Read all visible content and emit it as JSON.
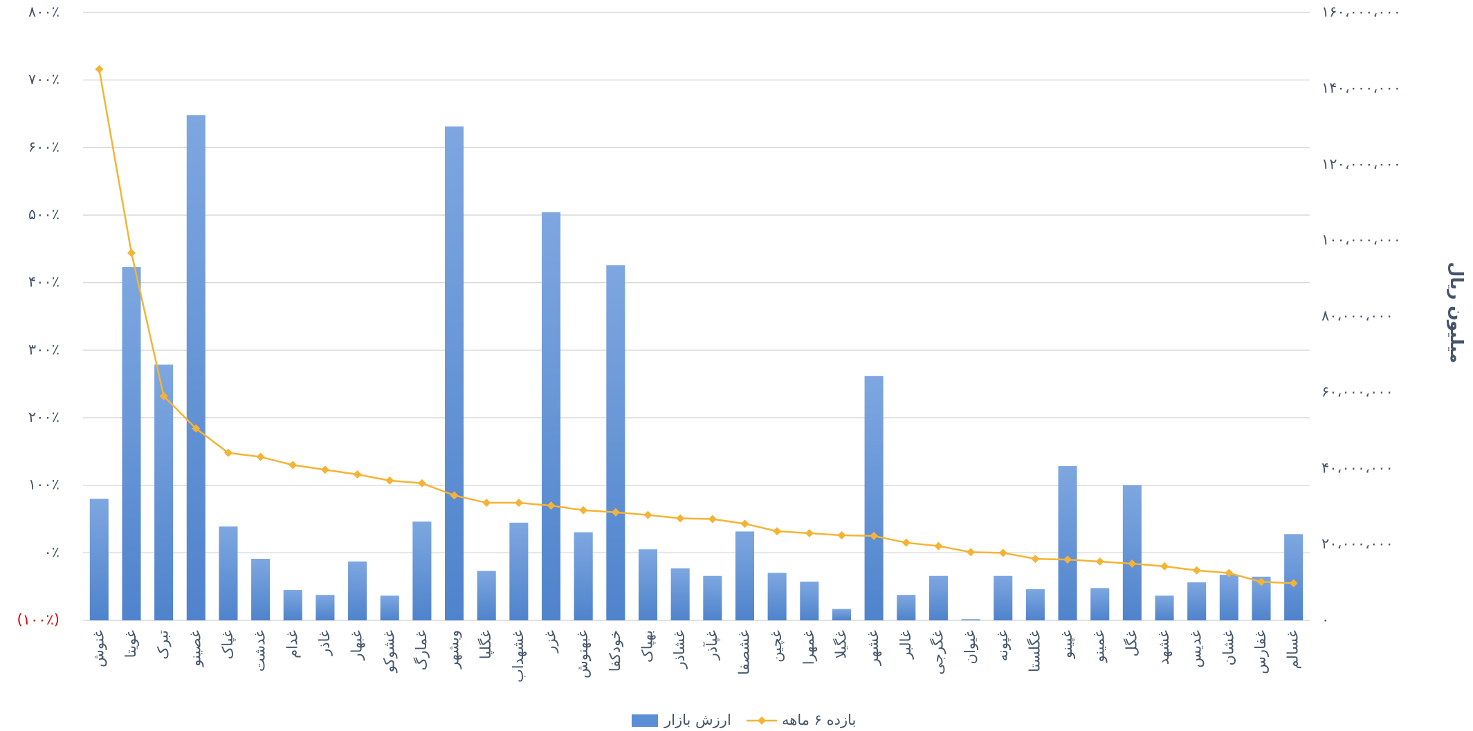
{
  "chart_data": {
    "type": "bar-line",
    "y_axis_title": "میلیون ریال",
    "categories": [
      "غنوش",
      "غویتا",
      "تبرک",
      "غصینو",
      "غپاک",
      "غدشت",
      "غدام",
      "غاذر",
      "غبهار",
      "غشوکو",
      "غمارگ",
      "وبشهر",
      "غگلپا",
      "غشهداب",
      "غزر",
      "غبهنوش",
      "خودکفا",
      "بهپاک",
      "غشاذر",
      "غپآذر",
      "غشصفا",
      "غچین",
      "غمهرا",
      "غگیلا",
      "غشهر",
      "غالبر",
      "غگرجی",
      "غیوان",
      "غپونه",
      "غگلستا",
      "غپینو",
      "غمینو",
      "غگل",
      "غشهد",
      "غدیس",
      "غشان",
      "غفارس",
      "غسالم"
    ],
    "series": [
      {
        "name": "ارزش بازار",
        "type": "bar",
        "axis": "y2",
        "color": "#5b8fd6",
        "values": [
          32000000,
          93000000,
          67300000,
          133000000,
          24700000,
          16200000,
          8000000,
          6700000,
          15500000,
          6500000,
          26000000,
          130000000,
          13000000,
          25700000,
          107400000,
          23200000,
          93500000,
          18700000,
          13700000,
          11700000,
          23400000,
          12500000,
          10200000,
          3000000,
          64300000,
          6700000,
          11700000,
          300000,
          11700000,
          8200000,
          40600000,
          8500000,
          35600000,
          6500000,
          10000000,
          12000000,
          11500000,
          22700000
        ]
      },
      {
        "name": "بازده ۶ ماهه",
        "type": "line",
        "axis": "y",
        "color": "#f5b335",
        "values": [
          716,
          444,
          232,
          184,
          148,
          142,
          130,
          123,
          116,
          107,
          103,
          85,
          74,
          74,
          70,
          63,
          60,
          56,
          51,
          50,
          43,
          32,
          29,
          26,
          25,
          15,
          10,
          1,
          0,
          -9,
          -10,
          -13,
          -16,
          -20,
          -26,
          -30,
          -43,
          -45
        ]
      }
    ],
    "ylim": [
      -100,
      800
    ],
    "yticks": [
      {
        "value": -100,
        "label": "(۱۰۰٪)"
      },
      {
        "value": 0,
        "label": "۰٪"
      },
      {
        "value": 100,
        "label": "۱۰۰٪"
      },
      {
        "value": 200,
        "label": "۲۰۰٪"
      },
      {
        "value": 300,
        "label": "۳۰۰٪"
      },
      {
        "value": 400,
        "label": "۴۰۰٪"
      },
      {
        "value": 500,
        "label": "۵۰۰٪"
      },
      {
        "value": 600,
        "label": "۶۰۰٪"
      },
      {
        "value": 700,
        "label": "۷۰۰٪"
      },
      {
        "value": 800,
        "label": "۸۰۰٪"
      }
    ],
    "negative_tick_color": "#e00000",
    "y2lim": [
      0,
      160000000
    ],
    "y2ticks": [
      {
        "value": 0,
        "label": "۰"
      },
      {
        "value": 20000000,
        "label": "۲۰،۰۰۰،۰۰۰"
      },
      {
        "value": 40000000,
        "label": "۴۰،۰۰۰،۰۰۰"
      },
      {
        "value": 60000000,
        "label": "۶۰،۰۰۰،۰۰۰"
      },
      {
        "value": 80000000,
        "label": "۸۰،۰۰۰،۰۰۰"
      },
      {
        "value": 100000000,
        "label": "۱۰۰،۰۰۰،۰۰۰"
      },
      {
        "value": 120000000,
        "label": "۱۲۰،۰۰۰،۰۰۰"
      },
      {
        "value": 140000000,
        "label": "۱۴۰،۰۰۰،۰۰۰"
      },
      {
        "value": 160000000,
        "label": "۱۶۰،۰۰۰،۰۰۰"
      }
    ],
    "grid": true,
    "legend": "bottom"
  }
}
